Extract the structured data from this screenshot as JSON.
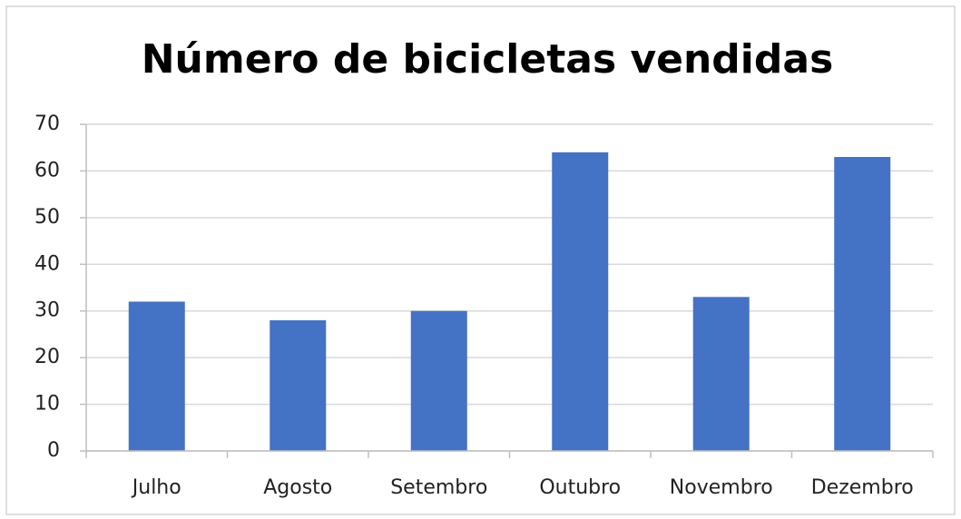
{
  "chart_data": {
    "type": "bar",
    "title": "Número de bicicletas vendidas",
    "categories": [
      "Julho",
      "Agosto",
      "Setembro",
      "Outubro",
      "Novembro",
      "Dezembro"
    ],
    "values": [
      32,
      28,
      30,
      64,
      33,
      63
    ],
    "color": "#4472c4",
    "ylim": [
      0,
      70
    ],
    "yticks": [
      0,
      10,
      20,
      30,
      40,
      50,
      60,
      70
    ],
    "grid": true
  }
}
